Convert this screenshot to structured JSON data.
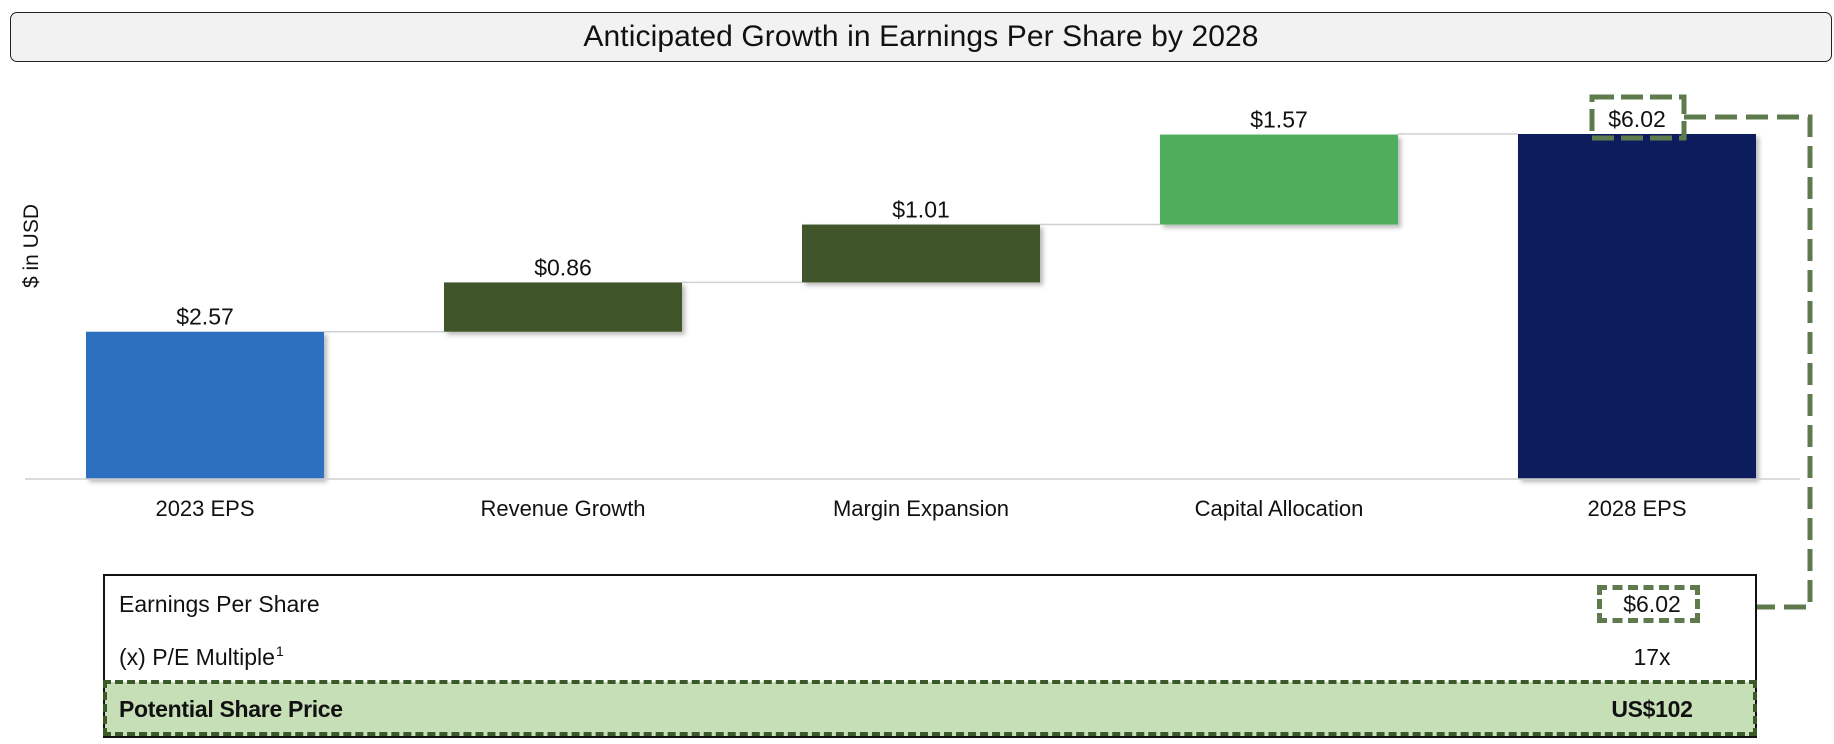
{
  "title": "Anticipated Growth in Earnings Per Share by 2028",
  "colors": {
    "start_bar": "#2f70c0",
    "increase_bar": "#3f552a",
    "capital_bar": "#4fae5c",
    "end_bar": "#0a1f5c",
    "highlight": "#5f7a4c",
    "price_row": "#c7dfb7"
  },
  "chart_data": {
    "type": "bar",
    "subtype": "waterfall",
    "title": "Anticipated Growth in Earnings Per Share by 2028",
    "ylabel": "$ in USD",
    "xlabel": "",
    "categories": [
      "2023 EPS",
      "Revenue Growth",
      "Margin Expansion",
      "Capital Allocation",
      "2028 EPS"
    ],
    "values": [
      2.57,
      0.86,
      1.01,
      1.57,
      6.02
    ],
    "bar_kinds": [
      "total",
      "increase",
      "increase",
      "increase",
      "total"
    ],
    "data_labels": [
      "$2.57",
      "$0.86",
      "$1.01",
      "$1.57",
      "$6.02"
    ],
    "ylim": [
      0,
      6.02
    ],
    "grid": false,
    "legend": "none"
  },
  "table": {
    "rows": [
      {
        "label": "Earnings Per Share",
        "value": "$6.02"
      },
      {
        "label": "(x) P/E Multiple",
        "footnote": "1",
        "value": "17x"
      },
      {
        "label": "Potential Share Price",
        "value": "US$102"
      }
    ]
  }
}
